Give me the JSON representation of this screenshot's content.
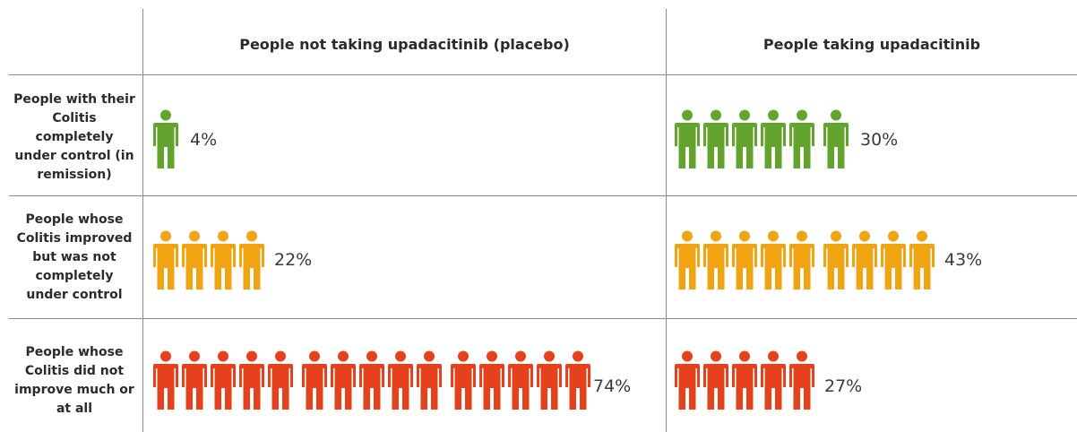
{
  "headers": {
    "placebo": "People not taking upadacitinib (placebo)",
    "treated": "People taking upadacitinib"
  },
  "rows": [
    {
      "label": "People with their Colitis completely under control (in remission)",
      "color": "#63a42e",
      "placebo": {
        "percent": "4%",
        "icons": 1
      },
      "treated": {
        "percent": "30%",
        "icons": 6
      }
    },
    {
      "label": "People whose Colitis improved but was not completely under control",
      "color": "#f0a411",
      "placebo": {
        "percent": "22%",
        "icons": 4
      },
      "treated": {
        "percent": "43%",
        "icons": 9
      }
    },
    {
      "label": "People whose Colitis did not improve much or at all",
      "color": "#e6411d",
      "placebo": {
        "percent": "74%",
        "icons": 15
      },
      "treated": {
        "percent": "27%",
        "icons": 5
      }
    }
  ],
  "icon": "person-icon"
}
